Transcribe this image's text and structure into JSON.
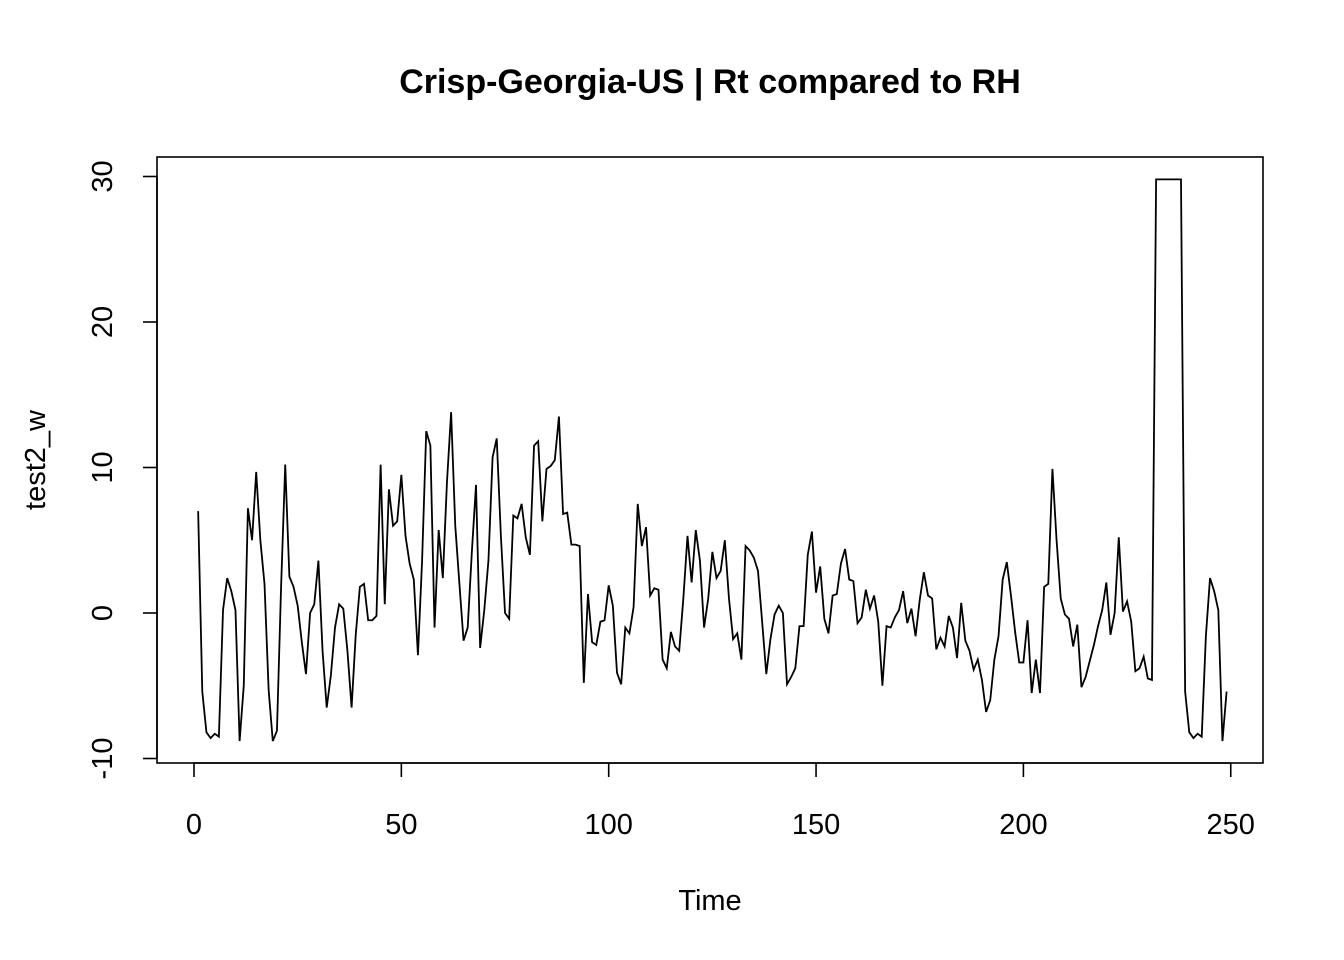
{
  "chart_data": {
    "type": "line",
    "title": "Crisp-Georgia-US | Rt compared to RH",
    "xlabel": "Time",
    "ylabel": "test2_w",
    "xlim": [
      1,
      248
    ],
    "ylim": [
      -10,
      30
    ],
    "x_ticks": [
      0,
      50,
      100,
      150,
      200,
      250
    ],
    "y_ticks": [
      -10,
      0,
      10,
      20,
      30
    ],
    "x_tick_labels": [
      "0",
      "50",
      "100",
      "150",
      "200",
      "250"
    ],
    "y_tick_labels": [
      "-10",
      "0",
      "10",
      "20",
      "30"
    ],
    "grid": false,
    "legend": "none",
    "color": "#000000",
    "series": [
      {
        "x_start": 1,
        "x_step": 1,
        "values": [
          7,
          -5.4,
          -8.2,
          -8.6,
          -8.3,
          -8.5,
          0.2,
          2.4,
          1.5,
          0.2,
          -8.8,
          -5,
          7.2,
          5,
          9.7,
          5,
          2,
          -5.3,
          -8.8,
          -8.1,
          1.8,
          10.2,
          2.5,
          1.8,
          0.5,
          -2,
          -4.2,
          0,
          0.6,
          3.6,
          -2.6,
          -6.5,
          -4.3,
          -1,
          0.6,
          0.3,
          -2.6,
          -6.5,
          -1.5,
          1.8,
          2,
          -0.5,
          -0.5,
          -0.2,
          10.2,
          0.6,
          8.5,
          6,
          6.3,
          9.5,
          5.3,
          3.4,
          2.3,
          -2.9,
          3.6,
          12.5,
          11.5,
          -1,
          5.7,
          2.4,
          9,
          13.8,
          6,
          2,
          -1.9,
          -1,
          4.2,
          8.8,
          -2.4,
          0.2,
          3.6,
          10.7,
          12,
          5.3,
          0,
          -0.4,
          6.7,
          6.5,
          7.5,
          5.2,
          4,
          11.5,
          11.8,
          6.3,
          9.9,
          10.1,
          10.5,
          13.5,
          6.8,
          6.9,
          4.7,
          4.7,
          4.6,
          -4.8,
          1.3,
          -2,
          -2.2,
          -0.6,
          -0.5,
          1.9,
          0.5,
          -4.1,
          -4.9,
          -1,
          -1.4,
          0.4,
          7.5,
          4.6,
          5.9,
          1.2,
          1.7,
          1.6,
          -3.2,
          -3.8,
          -1.3,
          -2.3,
          -2.6,
          1,
          5.3,
          2.1,
          5.7,
          3.6,
          -1,
          1,
          4.2,
          2.4,
          2.9,
          5,
          1,
          -1.8,
          -1.4,
          -3.2,
          4.6,
          4.3,
          3.8,
          2.9,
          -0.6,
          -4.2,
          -1.8,
          -0.1,
          0.5,
          0,
          -4.9,
          -4.4,
          -3.8,
          -0.9,
          -0.9,
          4,
          5.6,
          1.4,
          3.2,
          -0.4,
          -1.4,
          1.2,
          1.3,
          3.4,
          4.4,
          2.3,
          2.2,
          -0.7,
          -0.3,
          1.6,
          0.3,
          1.2,
          -0.6,
          -5,
          -0.9,
          -1,
          -0.3,
          0.2,
          1.5,
          -0.7,
          0.3,
          -1.6,
          0.9,
          2.8,
          1.2,
          1,
          -2.5,
          -1.7,
          -2.3,
          -0.2,
          -1,
          -3.1,
          0.7,
          -1.9,
          -2.6,
          -3.9,
          -3.2,
          -4.6,
          -6.8,
          -6,
          -3.2,
          -1.6,
          2.3,
          3.5,
          1.2,
          -1.3,
          -3.4,
          -3.4,
          -0.5,
          -5.5,
          -3.2,
          -5.5,
          1.8,
          2,
          9.9,
          5,
          1,
          -0.1,
          -0.4,
          -2.3,
          -0.8,
          -5.1,
          -4.4,
          -3.3,
          -2.2,
          -0.9,
          0.2,
          2.1,
          -1.5,
          0,
          5.2,
          0.1,
          0.8,
          -0.6,
          -4,
          -3.8,
          -3,
          -4.5,
          -4.6,
          29.8,
          29.8,
          29.8,
          29.8,
          29.8,
          29.8,
          29.8,
          -5.4,
          -8.2,
          -8.6,
          -8.3,
          -8.5,
          -1.6,
          2.4,
          1.5,
          0.2,
          -8.8,
          -5.4
        ]
      }
    ]
  }
}
